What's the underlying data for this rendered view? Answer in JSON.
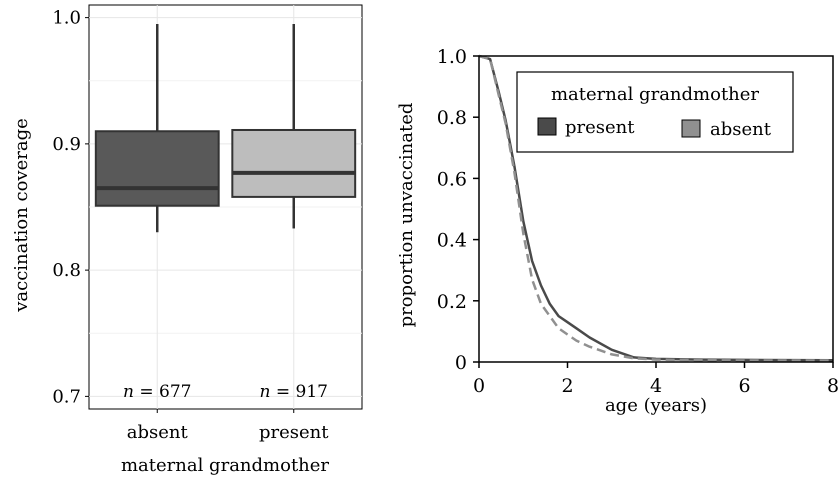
{
  "chart_data": [
    {
      "type": "box",
      "xlabel": "maternal grandmother",
      "ylabel": "vaccination coverage",
      "ylim": [
        0.69,
        1.01
      ],
      "yticks": [
        0.7,
        0.8,
        0.9,
        1.0
      ],
      "ytick_labels": [
        "0.7",
        "0.8",
        "0.9",
        "1.0"
      ],
      "grid": true,
      "boxes": [
        {
          "category": "absent",
          "min": 0.83,
          "q1": 0.851,
          "median": 0.865,
          "q3": 0.91,
          "max": 0.995,
          "n_label": "n = 677",
          "n_prefix": "n",
          "n_value": "= 677",
          "color": "#595959"
        },
        {
          "category": "present",
          "min": 0.833,
          "q1": 0.858,
          "median": 0.877,
          "q3": 0.911,
          "max": 0.995,
          "n_label": "n = 917",
          "n_prefix": "n",
          "n_value": "= 917",
          "color": "#bdbdbd"
        }
      ]
    },
    {
      "type": "line",
      "xlabel": "age (years)",
      "ylabel": "proportion unvaccinated",
      "xlim": [
        0,
        8
      ],
      "ylim": [
        0,
        1.0
      ],
      "xticks": [
        0,
        2,
        4,
        6,
        8
      ],
      "xtick_labels": [
        "0",
        "2",
        "4",
        "6",
        "8"
      ],
      "yticks": [
        0,
        0.2,
        0.4,
        0.6,
        0.8,
        1.0
      ],
      "ytick_labels": [
        "0",
        "0.2",
        "0.4",
        "0.6",
        "0.8",
        "1.0"
      ],
      "legend": {
        "title": "maternal grandmother",
        "placement": "top-right"
      },
      "series": [
        {
          "name": "present",
          "style": "solid",
          "color": "#4a4a4a",
          "x": [
            0,
            0.25,
            0.45,
            0.6,
            0.8,
            1.0,
            1.2,
            1.4,
            1.6,
            1.8,
            2.0,
            2.2,
            2.5,
            3.0,
            3.5,
            4.0,
            5.0,
            6.0,
            8.0
          ],
          "y": [
            1.0,
            0.99,
            0.88,
            0.79,
            0.64,
            0.46,
            0.33,
            0.25,
            0.19,
            0.15,
            0.13,
            0.11,
            0.08,
            0.04,
            0.015,
            0.01,
            0.008,
            0.007,
            0.006
          ]
        },
        {
          "name": "absent",
          "style": "dashed",
          "color": "#909090",
          "x": [
            0,
            0.25,
            0.45,
            0.6,
            0.8,
            1.0,
            1.2,
            1.4,
            1.6,
            1.8,
            2.0,
            2.2,
            2.5,
            3.0,
            3.5,
            4.0,
            5.0,
            6.0,
            8.0
          ],
          "y": [
            1.0,
            0.99,
            0.87,
            0.78,
            0.62,
            0.42,
            0.27,
            0.19,
            0.15,
            0.11,
            0.09,
            0.07,
            0.05,
            0.025,
            0.012,
            0.008,
            0.006,
            0.005,
            0.005
          ]
        }
      ]
    }
  ]
}
